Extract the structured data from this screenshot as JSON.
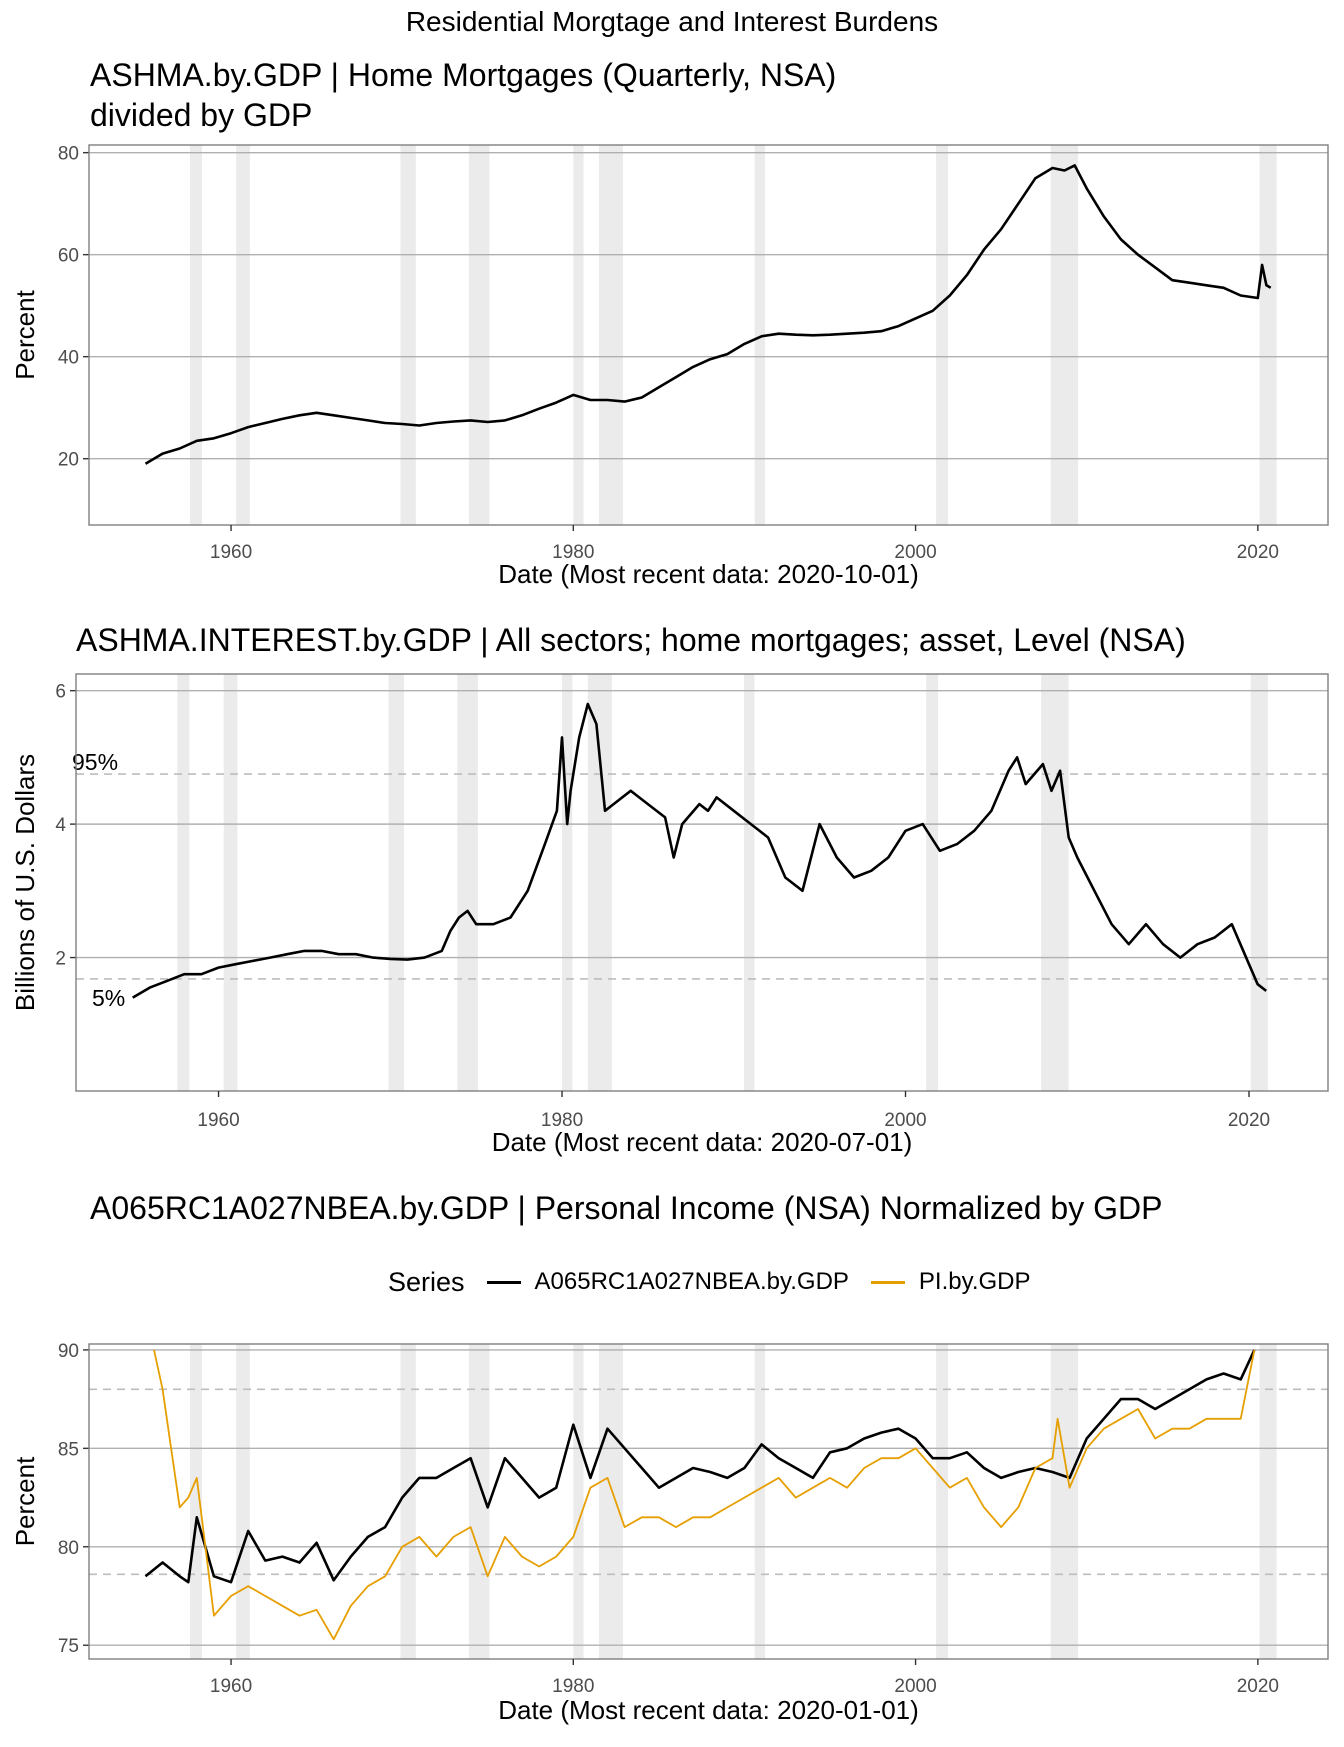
{
  "suptitle": "Residential Morgtage and Interest Burdens",
  "colors": {
    "rect_fill": "#ebebeb",
    "grid": "#b0b0b0",
    "border": "#7f7f7f",
    "black": "#000000",
    "orange": "#E69F00",
    "dashed": "#bdbdbd"
  },
  "chart_data": [
    {
      "type": "line",
      "title": "ASHMA.by.GDP | Home Mortgages (Quarterly, NSA)\ndivided by GDP",
      "title_lines": [
        "ASHMA.by.GDP | Home Mortgages (Quarterly, NSA)",
        "divided by GDP"
      ],
      "xlabel": "Date (Most recent data: 2020-10-01)",
      "ylabel": "Percent",
      "xlim": [
        1951.7,
        2024.1
      ],
      "ylim": [
        7,
        81.5
      ],
      "x_ticks": [
        1960,
        1980,
        2000,
        2020
      ],
      "y_ticks": [
        20,
        40,
        60,
        80
      ],
      "recessions": [
        [
          1957.6,
          1958.3
        ],
        [
          1960.3,
          1961.1
        ],
        [
          1969.9,
          1970.8
        ],
        [
          1973.9,
          1975.1
        ],
        [
          1980.0,
          1980.6
        ],
        [
          1981.5,
          1982.9
        ],
        [
          1990.6,
          1991.2
        ],
        [
          2001.2,
          2001.9
        ],
        [
          2007.9,
          2009.5
        ],
        [
          2020.1,
          2021.1
        ]
      ],
      "series": [
        {
          "color": "#000000",
          "x": [
            1955,
            1956,
            1957,
            1958,
            1959,
            1960,
            1961,
            1962,
            1963,
            1964,
            1965,
            1966,
            1967,
            1968,
            1969,
            1970,
            1971,
            1972,
            1973,
            1974,
            1975,
            1976,
            1977,
            1978,
            1979,
            1980,
            1981,
            1982,
            1983,
            1984,
            1985,
            1986,
            1987,
            1988,
            1989,
            1990,
            1991,
            1992,
            1993,
            1994,
            1995,
            1996,
            1997,
            1998,
            1999,
            2000,
            2001,
            2002,
            2003,
            2004,
            2005,
            2006,
            2007,
            2008,
            2008.7,
            2009.3,
            2010,
            2011,
            2012,
            2013,
            2014,
            2015,
            2016,
            2017,
            2018,
            2019,
            2020,
            2020.25,
            2020.5,
            2020.75
          ],
          "y": [
            19,
            21,
            22,
            23.5,
            24,
            25,
            26.2,
            27,
            27.8,
            28.5,
            29,
            28.5,
            28,
            27.5,
            27,
            26.8,
            26.5,
            27,
            27.3,
            27.5,
            27.2,
            27.5,
            28.5,
            29.8,
            31,
            32.5,
            31.5,
            31.5,
            31.2,
            32,
            34,
            36,
            38,
            39.5,
            40.5,
            42.5,
            44,
            44.5,
            44.3,
            44.2,
            44.3,
            44.5,
            44.7,
            45,
            46,
            47.5,
            49,
            52,
            56,
            61,
            65,
            70,
            75,
            77,
            76.5,
            77.5,
            73,
            67.5,
            63,
            60,
            57.5,
            55,
            54.5,
            54,
            53.5,
            52,
            51.5,
            58,
            54,
            53.5
          ]
        }
      ]
    },
    {
      "type": "line",
      "title": "ASHMA.INTEREST.by.GDP | All sectors; home mortgages; asset, Level (NSA)",
      "xlabel": "Date (Most recent data: 2020-07-01)",
      "ylabel": "Billions of U.S. Dollars",
      "xlim": [
        1951.7,
        2024.6
      ],
      "ylim": [
        0.0,
        6.25
      ],
      "x_ticks": [
        1960,
        1980,
        2000,
        2020
      ],
      "y_ticks": [
        2,
        4,
        6
      ],
      "hlines": [
        {
          "y": 4.75,
          "label": "95%"
        },
        {
          "y": 1.68,
          "label": "5%"
        }
      ],
      "recessions": [
        [
          1957.6,
          1958.3
        ],
        [
          1960.3,
          1961.1
        ],
        [
          1969.9,
          1970.8
        ],
        [
          1973.9,
          1975.1
        ],
        [
          1980.0,
          1980.6
        ],
        [
          1981.5,
          1982.9
        ],
        [
          1990.6,
          1991.2
        ],
        [
          2001.2,
          2001.9
        ],
        [
          2007.9,
          2009.5
        ],
        [
          2020.1,
          2021.1
        ]
      ],
      "series": [
        {
          "color": "#000000",
          "x": [
            1955,
            1956,
            1957,
            1958,
            1959,
            1960,
            1961,
            1962,
            1963,
            1964,
            1965,
            1966,
            1967,
            1968,
            1969,
            1970,
            1971,
            1972,
            1973,
            1973.5,
            1974,
            1974.5,
            1975,
            1976,
            1977,
            1978,
            1979,
            1979.7,
            1980,
            1980.3,
            1980.5,
            1981,
            1981.5,
            1982,
            1982.5,
            1983,
            1984,
            1985,
            1986,
            1986.5,
            1987,
            1988,
            1988.5,
            1989,
            1990,
            1991,
            1992,
            1993,
            1994,
            1995,
            1996,
            1997,
            1998,
            1999,
            2000,
            2001,
            2002,
            2003,
            2004,
            2005,
            2006,
            2006.5,
            2007,
            2008,
            2008.5,
            2009,
            2009.5,
            2010,
            2011,
            2012,
            2013,
            2014,
            2015,
            2016,
            2017,
            2018,
            2019,
            2020,
            2020.5,
            2021
          ],
          "y": [
            1.4,
            1.55,
            1.65,
            1.75,
            1.75,
            1.85,
            1.9,
            1.95,
            2.0,
            2.05,
            2.1,
            2.1,
            2.05,
            2.05,
            2.0,
            1.98,
            1.97,
            2.0,
            2.1,
            2.4,
            2.6,
            2.7,
            2.5,
            2.5,
            2.6,
            3.0,
            3.7,
            4.2,
            5.3,
            4.0,
            4.5,
            5.3,
            5.8,
            5.5,
            4.2,
            4.3,
            4.5,
            4.3,
            4.1,
            3.5,
            4.0,
            4.3,
            4.2,
            4.4,
            4.2,
            4.0,
            3.8,
            3.2,
            3.0,
            4.0,
            3.5,
            3.2,
            3.3,
            3.5,
            3.9,
            4.0,
            3.6,
            3.7,
            3.9,
            4.2,
            4.8,
            5.0,
            4.6,
            4.9,
            4.5,
            4.8,
            3.8,
            3.5,
            3.0,
            2.5,
            2.2,
            2.5,
            2.2,
            2.0,
            2.2,
            2.3,
            2.5,
            1.9,
            1.6,
            1.5
          ]
        }
      ]
    },
    {
      "type": "line",
      "title": "A065RC1A027NBEA.by.GDP | Personal Income (NSA) Normalized by GDP",
      "legend_title": "Series",
      "legend_position": "top",
      "xlabel": "Date (Most recent data: 2020-01-01)",
      "ylabel": "Percent",
      "xlim": [
        1951.7,
        2024.1
      ],
      "ylim": [
        74.3,
        90.3
      ],
      "x_ticks": [
        1960,
        1980,
        2000,
        2020
      ],
      "y_ticks": [
        75,
        80,
        85,
        90
      ],
      "hlines": [
        {
          "y": 88.0
        },
        {
          "y": 78.6
        }
      ],
      "recessions": [
        [
          1957.6,
          1958.3
        ],
        [
          1960.3,
          1961.1
        ],
        [
          1969.9,
          1970.8
        ],
        [
          1973.9,
          1975.1
        ],
        [
          1980.0,
          1980.6
        ],
        [
          1981.5,
          1982.9
        ],
        [
          1990.6,
          1991.2
        ],
        [
          2001.2,
          2001.9
        ],
        [
          2007.9,
          2009.5
        ],
        [
          2020.1,
          2021.1
        ]
      ],
      "series": [
        {
          "name": "A065RC1A027NBEA.by.GDP",
          "color": "#000000",
          "x": [
            1955,
            1956,
            1957,
            1957.5,
            1958,
            1959,
            1960,
            1961,
            1962,
            1963,
            1964,
            1965,
            1966,
            1967,
            1968,
            1969,
            1970,
            1971,
            1972,
            1973,
            1974,
            1975,
            1976,
            1977,
            1978,
            1979,
            1980,
            1981,
            1982,
            1983,
            1984,
            1985,
            1986,
            1987,
            1988,
            1989,
            1990,
            1991,
            1992,
            1993,
            1994,
            1995,
            1996,
            1997,
            1998,
            1999,
            2000,
            2001,
            2002,
            2003,
            2004,
            2005,
            2006,
            2007,
            2008,
            2009,
            2010,
            2011,
            2012,
            2013,
            2014,
            2015,
            2016,
            2017,
            2018,
            2019,
            2019.8
          ],
          "y": [
            78.5,
            79.2,
            78.5,
            78.2,
            81.5,
            78.5,
            78.2,
            80.8,
            79.3,
            79.5,
            79.2,
            80.2,
            78.3,
            79.5,
            80.5,
            81,
            82.5,
            83.5,
            83.5,
            84,
            84.5,
            82,
            84.5,
            83.5,
            82.5,
            83,
            86.2,
            83.5,
            86,
            85,
            84,
            83,
            83.5,
            84,
            83.8,
            83.5,
            84,
            85.2,
            84.5,
            84,
            83.5,
            84.8,
            85,
            85.5,
            85.8,
            86,
            85.5,
            84.5,
            84.5,
            84.8,
            84,
            83.5,
            83.8,
            84,
            83.8,
            83.5,
            85.5,
            86.5,
            87.5,
            87.5,
            87,
            87.5,
            88,
            88.5,
            88.8,
            88.5,
            90
          ]
        },
        {
          "name": "PI.by.GDP",
          "color": "#E69F00",
          "x": [
            1955.5,
            1956,
            1956.5,
            1957,
            1957.5,
            1958,
            1958.5,
            1959,
            1960,
            1961,
            1962,
            1963,
            1964,
            1965,
            1966,
            1967,
            1968,
            1969,
            1970,
            1971,
            1972,
            1973,
            1974,
            1975,
            1976,
            1977,
            1978,
            1979,
            1980,
            1981,
            1982,
            1983,
            1984,
            1985,
            1986,
            1987,
            1988,
            1989,
            1990,
            1991,
            1992,
            1993,
            1994,
            1995,
            1996,
            1997,
            1998,
            1999,
            2000,
            2001,
            2002,
            2003,
            2004,
            2005,
            2006,
            2007,
            2008,
            2008.3,
            2009,
            2010,
            2011,
            2012,
            2013,
            2014,
            2015,
            2016,
            2017,
            2018,
            2019,
            2019.8
          ],
          "y": [
            90,
            88,
            85,
            82,
            82.5,
            83.5,
            80,
            76.5,
            77.5,
            78,
            77.5,
            77,
            76.5,
            76.8,
            75.3,
            77,
            78,
            78.5,
            80,
            80.5,
            79.5,
            80.5,
            81,
            78.5,
            80.5,
            79.5,
            79,
            79.5,
            80.5,
            83,
            83.5,
            81,
            81.5,
            81.5,
            81,
            81.5,
            81.5,
            82,
            82.5,
            83,
            83.5,
            82.5,
            83,
            83.5,
            83,
            84,
            84.5,
            84.5,
            85,
            84,
            83,
            83.5,
            82,
            81,
            82,
            84,
            84.5,
            86.5,
            83,
            85,
            86,
            86.5,
            87,
            85.5,
            86,
            86,
            86.5,
            86.5,
            86.5,
            90
          ]
        }
      ]
    }
  ]
}
